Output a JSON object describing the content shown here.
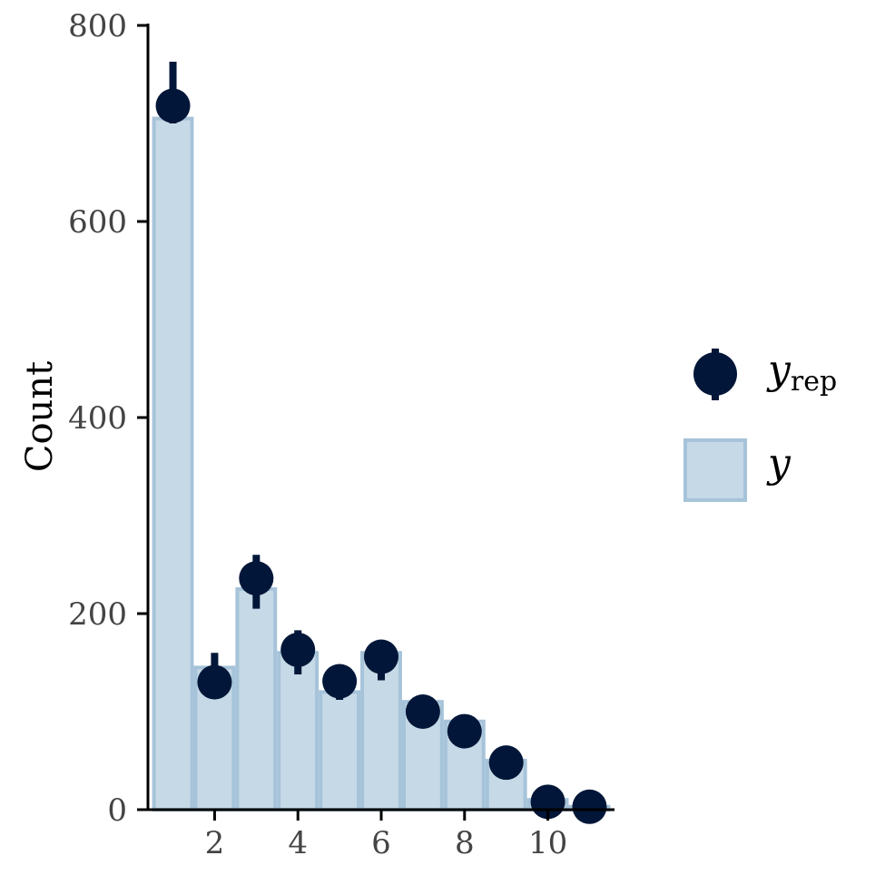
{
  "chart_data": {
    "type": "bar",
    "ylabel": "Count",
    "xlabel": "",
    "x_ticks": [
      2,
      4,
      6,
      8,
      10
    ],
    "y_ticks": [
      0,
      200,
      400,
      600,
      800
    ],
    "xlim": [
      0.4,
      11.6
    ],
    "ylim": [
      0,
      800
    ],
    "grid": false,
    "legend_position": "right",
    "y_observed": {
      "name": "y",
      "x": [
        1,
        2,
        3,
        4,
        5,
        6,
        7,
        8,
        9,
        10,
        11
      ],
      "values": [
        705,
        145,
        225,
        160,
        120,
        160,
        110,
        90,
        50,
        10,
        3
      ]
    },
    "y_rep": {
      "name_base": "y",
      "name_sub": "rep",
      "x": [
        1,
        2,
        3,
        4,
        5,
        6,
        7,
        8,
        9,
        10,
        11
      ],
      "median": [
        718,
        130,
        236,
        163,
        131,
        156,
        100,
        80,
        48,
        8,
        3
      ],
      "lower": [
        700,
        115,
        205,
        138,
        112,
        132,
        88,
        70,
        35,
        2,
        0
      ],
      "upper": [
        763,
        160,
        260,
        183,
        147,
        170,
        112,
        92,
        60,
        16,
        8
      ]
    },
    "colors": {
      "bar_fill": "#c6d9e7",
      "bar_edge": "#a6c3d9",
      "point": "#011638",
      "axis": "#000000"
    }
  }
}
